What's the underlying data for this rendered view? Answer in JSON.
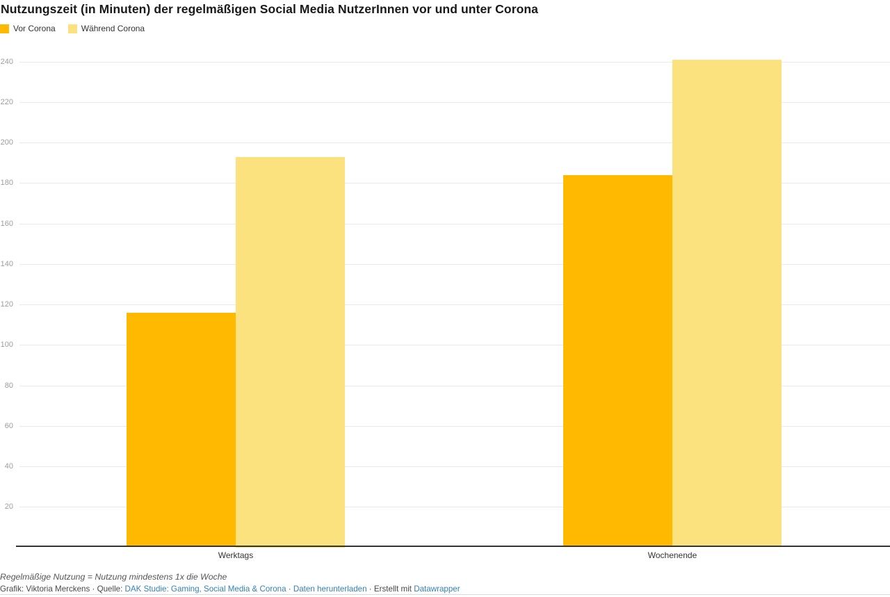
{
  "title": "Nutzungszeit (in Minuten) der regelmäßigen Social Media NutzerInnen vor und unter Corona",
  "chart_data": {
    "type": "bar",
    "title": "Nutzungszeit (in Minuten) der regelmäßigen Social Media NutzerInnen vor und unter Corona",
    "categories": [
      "Werktags",
      "Wochenende"
    ],
    "series": [
      {
        "name": "Vor Corona",
        "color": "#ffb900",
        "values": [
          116,
          184
        ]
      },
      {
        "name": "Während Corona",
        "color": "#fce27e",
        "values": [
          193,
          241
        ]
      }
    ],
    "xlabel": "",
    "ylabel": "",
    "ylim": [
      0,
      250
    ],
    "yticks": [
      20,
      40,
      60,
      80,
      100,
      120,
      140,
      160,
      180,
      200,
      220,
      240
    ],
    "grid": "horizontal",
    "legend_position": "top-left",
    "gridline_color": "#e9e9e9",
    "axis_color": "#333333",
    "tick_label_color": "#9d9d9d"
  },
  "footnote": "Regelmäßige Nutzung = Nutzung mindestens 1x die Woche",
  "footer": {
    "link_color": "#3481b8",
    "text_color": "#494949",
    "parts": [
      {
        "text": "Grafik: Viktoria Merckens · Quelle: ",
        "link": false
      },
      {
        "text": "DAK Studie: Gaming, Social Media & Corona",
        "link": true
      },
      {
        "text": " · ",
        "link": false
      },
      {
        "text": "Daten herunterladen",
        "link": true
      },
      {
        "text": " · Erstellt mit ",
        "link": false
      },
      {
        "text": "Datawrapper",
        "link": true
      }
    ]
  }
}
